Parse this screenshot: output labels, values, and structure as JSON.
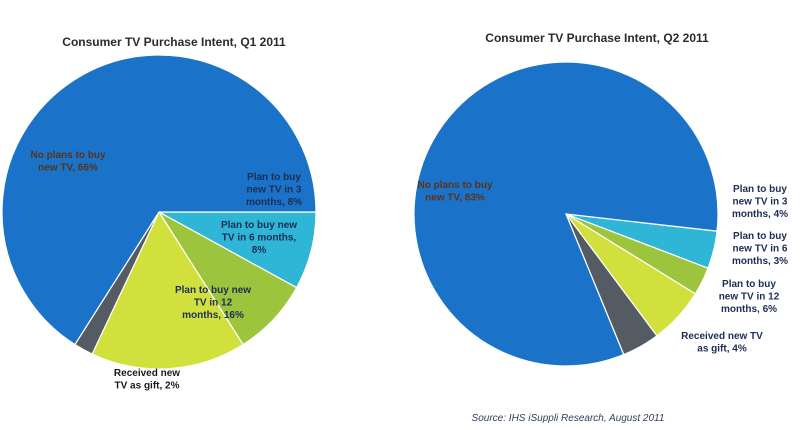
{
  "chart_data": [
    {
      "type": "pie",
      "title": "Consumer TV Purchase Intent, Q1 2011",
      "slices": [
        {
          "name": "No plans to buy new TV",
          "value": 66,
          "label": "No plans to buy new TV, 66%",
          "color": "#1a73c8"
        },
        {
          "name": "Plan to buy new TV in 3 months",
          "value": 8,
          "label": "Plan to buy new TV in 3 months, 8%",
          "color": "#2fb5d6"
        },
        {
          "name": "Plan to buy new TV in 6 months",
          "value": 8,
          "label": "Plan to buy new TV in 6 months, 8%",
          "color": "#9cc43c"
        },
        {
          "name": "Plan to buy new TV in 12 months",
          "value": 16,
          "label": "Plan to buy new TV in 12 months, 16%",
          "color": "#d2e03e"
        },
        {
          "name": "Received new TV as gift",
          "value": 2,
          "label": "Received new TV as gift, 2%",
          "color": "#555b63"
        }
      ]
    },
    {
      "type": "pie",
      "title": "Consumer TV Purchase Intent, Q2 2011",
      "slices": [
        {
          "name": "No plans to buy new TV",
          "value": 83,
          "label": "No plans to buy new TV, 83%",
          "color": "#1a73c8"
        },
        {
          "name": "Plan to buy new TV in 3 months",
          "value": 4,
          "label": "Plan to buy new TV in 3 months, 4%",
          "color": "#2fb5d6"
        },
        {
          "name": "Plan to buy new TV in 6 months",
          "value": 3,
          "label": "Plan to buy new TV in 6 months, 3%",
          "color": "#9cc43c"
        },
        {
          "name": "Plan to buy new TV in 12 months",
          "value": 6,
          "label": "Plan to buy new TV in 12 months, 6%",
          "color": "#d2e03e"
        },
        {
          "name": "Received new TV as gift",
          "value": 4,
          "label": "Received new TV as gift, 4%",
          "color": "#555b63"
        }
      ]
    }
  ],
  "source": "Source: IHS iSuppli Research, August 2011"
}
